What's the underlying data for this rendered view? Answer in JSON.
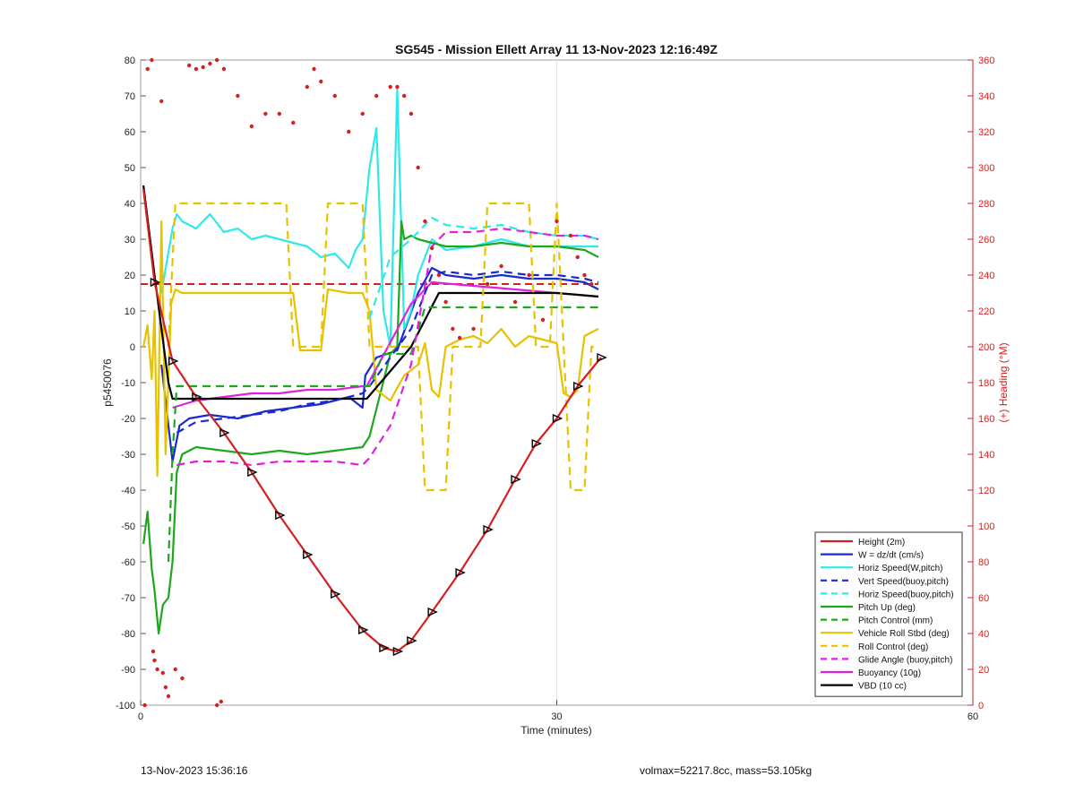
{
  "footer": {
    "left": "13-Nov-2023 15:36:16",
    "right": "volmax=52217.8cc, mass=53.105kg"
  },
  "chart_data": {
    "type": "line",
    "title": "SG545 - Mission Ellett Array 11 13-Nov-2023 12:16:49Z",
    "xlabel": "Time (minutes)",
    "ylabel": "p5450076",
    "y2label": "(+) Heading (°M)",
    "xlim": [
      0,
      60
    ],
    "ylim": [
      -100,
      80
    ],
    "y2lim": [
      0,
      360
    ],
    "xticks": [
      0,
      30,
      60
    ],
    "yticks": [
      -100,
      -90,
      -80,
      -70,
      -60,
      -50,
      -40,
      -30,
      -20,
      -10,
      0,
      10,
      20,
      30,
      40,
      50,
      60,
      70,
      80
    ],
    "y2ticks": [
      0,
      20,
      40,
      60,
      80,
      100,
      120,
      140,
      160,
      180,
      200,
      220,
      240,
      260,
      280,
      300,
      320,
      340,
      360
    ],
    "grid": "x-only",
    "legend_position": "bottom-right",
    "series": [
      {
        "name": "Height (2m)",
        "color": "#d62020",
        "style": "solid",
        "markers": "triangle",
        "x": [
          0.2,
          1.0,
          2.3,
          4.0,
          6.0,
          8.0,
          10.0,
          12.0,
          14.0,
          16.0,
          17.5,
          18.5,
          19.5,
          21.0,
          23.0,
          25.0,
          27.0,
          28.5,
          30.0,
          31.5,
          33.2
        ],
        "y": [
          44,
          18,
          -4,
          -14,
          -24,
          -35,
          -47,
          -58,
          -69,
          -79,
          -84,
          -85,
          -82,
          -74,
          -63,
          -51,
          -37,
          -27,
          -20,
          -11,
          -3
        ]
      },
      {
        "name": "W = dz/dt (cm/s)",
        "color": "#1a2ad0",
        "style": "solid",
        "x": [
          1.5,
          2.3,
          2.8,
          3.5,
          5,
          7,
          9,
          11,
          13,
          15,
          16,
          16.2,
          17,
          18.5,
          20,
          21,
          22,
          24,
          26,
          28,
          30,
          32,
          33
        ],
        "y": [
          -5,
          -32,
          -22,
          -20,
          -19,
          -20,
          -18,
          -17,
          -16,
          -14,
          -17,
          -8,
          -3,
          -1,
          15,
          22,
          20,
          19,
          20,
          19,
          19,
          18,
          16
        ]
      },
      {
        "name": "Horiz Speed(W,pitch)",
        "color": "#30e8e8",
        "style": "solid",
        "x": [
          1.5,
          2.3,
          2.6,
          3,
          4,
          5,
          6,
          7,
          8,
          9,
          10,
          11,
          12,
          13,
          14,
          15,
          15.5,
          16,
          16.5,
          17,
          17.5,
          18,
          18.5,
          19,
          19.5,
          20,
          21,
          22,
          24,
          26,
          28,
          30,
          32,
          33
        ],
        "y": [
          15,
          33,
          37,
          35,
          33,
          37,
          32,
          33,
          30,
          31,
          30,
          29,
          28,
          25,
          26,
          22,
          27,
          30,
          50,
          61,
          10,
          0,
          72,
          5,
          10,
          20,
          30,
          27,
          28,
          30,
          28,
          28,
          28,
          28
        ]
      },
      {
        "name": "Vert Speed(buoy,pitch)",
        "color": "#1a2ad0",
        "style": "dashed",
        "x": [
          2.6,
          4,
          6,
          8,
          10,
          12,
          14,
          16,
          16.5,
          18,
          19.5,
          21,
          22,
          24,
          26,
          28,
          30,
          32,
          33
        ],
        "y": [
          -24,
          -21,
          -20,
          -19,
          -18,
          -16,
          -15,
          -13,
          -11,
          -3,
          5,
          20,
          21,
          20,
          21,
          20,
          20,
          19,
          18
        ]
      },
      {
        "name": "Horiz Speed(buoy,pitch)",
        "color": "#30e8e8",
        "style": "dashed",
        "x": [
          16.5,
          18,
          19.5,
          21,
          22,
          24,
          26,
          28,
          30,
          32,
          33
        ],
        "y": [
          8,
          25,
          30,
          36,
          34,
          33,
          34,
          32,
          31,
          31,
          30
        ]
      },
      {
        "name": "Pitch Up (deg)",
        "color": "#1ca81c",
        "style": "solid",
        "x": [
          0.2,
          0.5,
          0.8,
          1.0,
          1.3,
          1.6,
          2.0,
          2.3,
          2.6,
          3,
          4,
          6,
          8,
          10,
          12,
          14,
          16,
          16.5,
          18,
          18.5,
          18.8,
          19.0,
          19.5,
          20,
          21,
          22,
          24,
          26,
          28,
          30,
          32,
          33
        ],
        "y": [
          -55,
          -46,
          -62,
          -68,
          -80,
          -72,
          -70,
          -60,
          -35,
          -30,
          -28,
          -29,
          -30,
          -29,
          -30,
          -29,
          -28,
          -25,
          -2,
          0,
          35,
          30,
          31,
          30,
          29,
          28,
          28,
          29,
          28,
          28,
          27,
          25
        ]
      },
      {
        "name": "Pitch Control (mm)",
        "color": "#1ca81c",
        "style": "dashed",
        "x": [
          2.0,
          2.3,
          2.6,
          16.5,
          17.5,
          19.5,
          20.5,
          22,
          33
        ],
        "y": [
          -60,
          -30,
          -11,
          -11,
          -2,
          -2,
          11,
          11,
          11
        ]
      },
      {
        "name": "Vehicle Roll Stbd (deg)",
        "color": "#e6c200",
        "style": "solid",
        "x": [
          0.2,
          0.5,
          0.8,
          1.0,
          1.2,
          1.5,
          1.8,
          2.2,
          2.5,
          3,
          4,
          6,
          8,
          10,
          11,
          11.5,
          13,
          13.5,
          15,
          16,
          16.5,
          17,
          18,
          19,
          20,
          20.5,
          21,
          21.5,
          22,
          23,
          24,
          25,
          26,
          27,
          28,
          29,
          30,
          30.5,
          31,
          31.5,
          32,
          33
        ],
        "y": [
          0,
          6,
          -9,
          10,
          -36,
          35,
          -30,
          12,
          16,
          15,
          15,
          15,
          15,
          15,
          15,
          -1,
          -1,
          16,
          15,
          15,
          10,
          -12,
          -15,
          -8,
          -5,
          1,
          -12,
          -14,
          0,
          2,
          3,
          1,
          5,
          0,
          3,
          2,
          1,
          -13,
          -14,
          -12,
          3,
          5
        ]
      },
      {
        "name": "Roll Control (deg)",
        "color": "#e6c200",
        "style": "dashed",
        "x": [
          2.0,
          2.5,
          10.5,
          11,
          13,
          13.5,
          16,
          16.5,
          20,
          20.5,
          22,
          22.5,
          24.5,
          25,
          28,
          28.5,
          29.5,
          30,
          30.5,
          31,
          32,
          32.5,
          33
        ],
        "y": [
          0,
          40,
          40,
          0,
          0,
          40,
          40,
          0,
          0,
          -40,
          -40,
          0,
          0,
          40,
          40,
          0,
          0,
          40,
          0,
          -40,
          -40,
          0,
          0
        ]
      },
      {
        "name": "Glide Angle (buoy,pitch)",
        "color": "#e020e0",
        "style": "dashed",
        "x": [
          2.6,
          4,
          6,
          8,
          10,
          12,
          14,
          16,
          16.5,
          18,
          19.5,
          21,
          22,
          24,
          26,
          28,
          30,
          32,
          33
        ],
        "y": [
          -33,
          -32,
          -32,
          -33,
          -32,
          -32,
          -32,
          -33,
          -31,
          -22,
          -5,
          28,
          32,
          32,
          33,
          32,
          31,
          31,
          30
        ]
      },
      {
        "name": "Buoyancy (10g)",
        "color": "#e020e0",
        "style": "solid",
        "x": [
          2.3,
          4,
          6,
          8,
          10,
          12,
          14,
          16,
          16.3,
          19.5,
          21,
          24,
          27,
          30,
          33
        ],
        "y": [
          -17,
          -15,
          -14,
          -13,
          -13,
          -12,
          -12,
          -11,
          -11,
          12,
          18,
          17,
          16,
          15,
          14
        ]
      },
      {
        "name": "VBD (10 cc)",
        "color": "#000000",
        "style": "solid",
        "x": [
          0.2,
          1.0,
          2.0,
          2.3,
          4,
          8,
          12,
          16,
          16.3,
          19.5,
          21.5,
          25,
          30,
          33
        ],
        "y": [
          45,
          20,
          -10,
          -14.5,
          -14.5,
          -14.5,
          -14.5,
          -14.5,
          -14.5,
          0,
          15,
          15,
          15,
          14
        ]
      }
    ],
    "reference_lines": [
      {
        "color": "#d62020",
        "style": "dashed",
        "y": 17.5,
        "x": [
          0,
          33
        ]
      }
    ],
    "heading_points": {
      "color": "#d62020",
      "axis": "right",
      "x": [
        0.5,
        0.8,
        1.5,
        3.5,
        4.0,
        4.5,
        5.0,
        5.5,
        6.0,
        7.0,
        8.0,
        9.0,
        10.0,
        11.0,
        12.0,
        12.5,
        13.0,
        14.0,
        15.0,
        16.0,
        17.0,
        18.0,
        18.5,
        19.0,
        19.5,
        20.0,
        20.5,
        21.0,
        21.5,
        22.0,
        22.5,
        23.0,
        24.0,
        25.0,
        26.0,
        27.0,
        28.0,
        29.0,
        30.0,
        31.0,
        31.5,
        32.0,
        32.5,
        0.3,
        0.9,
        1.2,
        1.6,
        2.0,
        2.5,
        3.0,
        5.5,
        5.8,
        1.0,
        1.8
      ],
      "y": [
        355,
        360,
        337,
        357,
        355,
        356,
        358,
        360,
        355,
        340,
        323,
        330,
        330,
        325,
        345,
        355,
        348,
        340,
        320,
        330,
        340,
        345,
        345,
        340,
        330,
        300,
        270,
        255,
        240,
        225,
        210,
        205,
        210,
        235,
        245,
        225,
        240,
        215,
        270,
        262,
        250,
        240,
        235,
        0,
        30,
        20,
        18,
        5,
        20,
        15,
        0,
        2,
        25,
        10
      ]
    }
  }
}
